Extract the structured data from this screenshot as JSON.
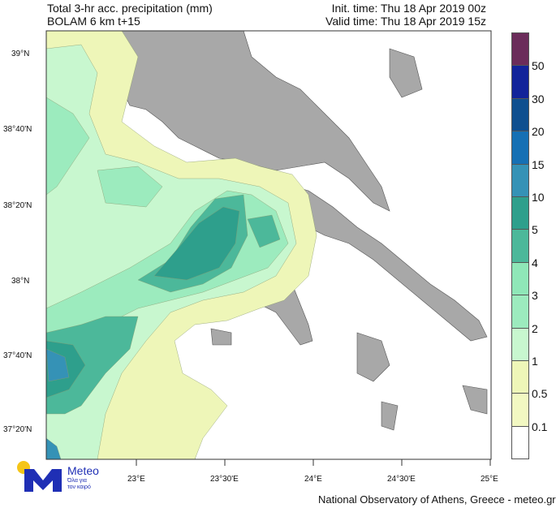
{
  "header": {
    "title": "Total 3-hr acc. precipitation (mm)",
    "model": "BOLAM 6 km t+15",
    "init_time": "Init. time: Thu 18 Apr 2019 00z",
    "valid_time": "Valid time: Thu 18 Apr 2019 15z"
  },
  "map": {
    "lat_labels": [
      "39°N",
      "38°40'N",
      "38°20'N",
      "38°N",
      "37°40'N",
      "37°20'N"
    ],
    "lon_labels": [
      "23°E",
      "23°30'E",
      "24°E",
      "24°30'E",
      "25°E"
    ],
    "land_color": "#a8a8a8",
    "sea_color": "#ffffff"
  },
  "colorbar": {
    "labels": [
      "50",
      "30",
      "20",
      "15",
      "10",
      "5",
      "4",
      "3",
      "2",
      "1",
      "0.5",
      "0.1"
    ],
    "colors": [
      "#6b2c5a",
      "#12239a",
      "#0f4f8f",
      "#1670b4",
      "#3592b6",
      "#2e9f8c",
      "#4cb89a",
      "#8fe7b8",
      "#9cebbe",
      "#c8f7cf",
      "#eef6b8",
      "#f2f8c2",
      "#ffffff"
    ]
  },
  "logo": {
    "name": "Meteo",
    "tagline_1": "Όλα για",
    "tagline_2": "τον καιρό"
  },
  "footer": {
    "credit": "National Observatory of Athens, Greece - meteo.gr"
  }
}
